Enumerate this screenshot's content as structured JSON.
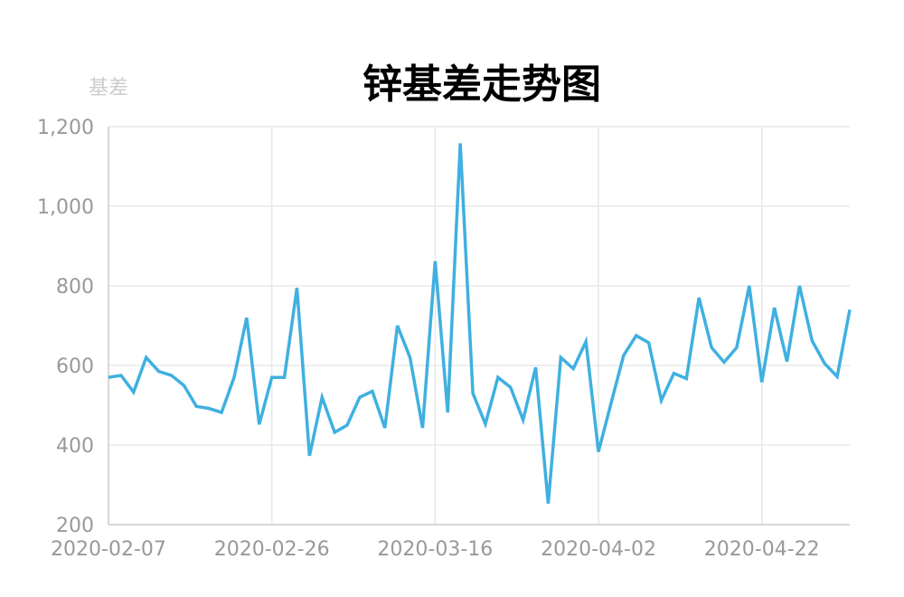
{
  "chart_data": {
    "type": "line",
    "title": "锌基差走势图",
    "xlabel": "",
    "ylabel": "基差",
    "ylim": [
      200,
      1200
    ],
    "yticks": [
      200,
      400,
      600,
      800,
      1000,
      1200
    ],
    "ytick_labels": [
      "200",
      "400",
      "600",
      "800",
      "1,000",
      "1,200"
    ],
    "xtick_labels": [
      "2020-02-07",
      "2020-02-26",
      "2020-03-16",
      "2020-04-02",
      "2020-04-22"
    ],
    "grid": true,
    "legend": "none",
    "colors": {
      "line": "#3fb0e0",
      "grid": "#e8e8e8",
      "axis": "#cccccc"
    },
    "series": [
      {
        "values": [
          570,
          575,
          533,
          620,
          585,
          575,
          550,
          497,
          492,
          482,
          570,
          720,
          452,
          570,
          570,
          795,
          373,
          520,
          432,
          450,
          520,
          535,
          443,
          700,
          620,
          443,
          862,
          482,
          1158,
          530,
          453,
          570,
          545,
          463,
          595,
          253,
          620,
          592,
          660,
          383,
          505,
          625,
          675,
          657,
          512,
          580,
          567,
          770,
          645,
          608,
          645,
          800,
          558,
          745,
          610,
          800,
          662,
          605,
          572,
          740
        ]
      }
    ]
  }
}
